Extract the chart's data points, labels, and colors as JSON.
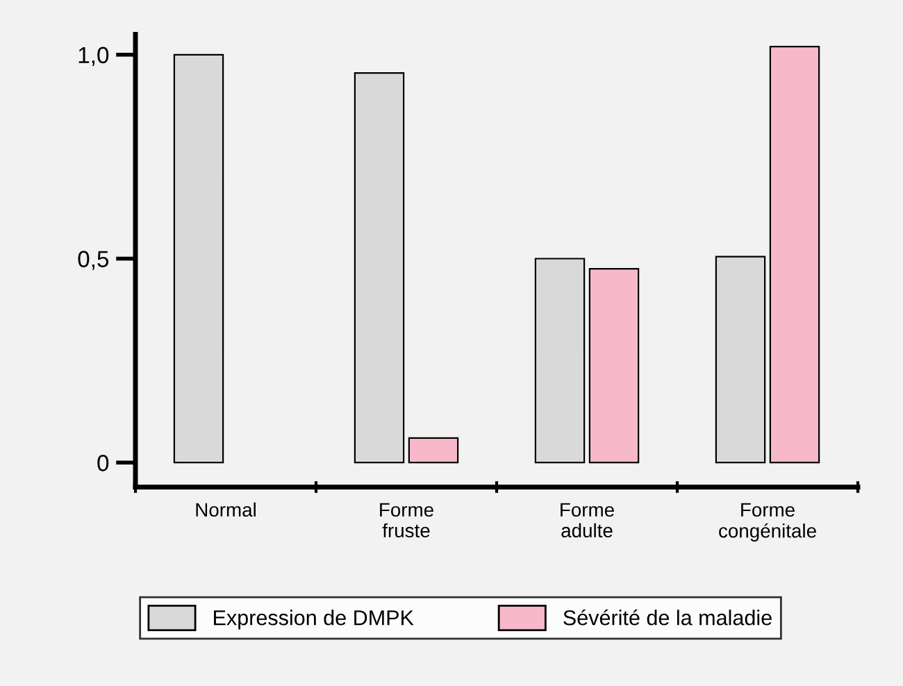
{
  "chart_data": {
    "type": "bar",
    "categories": [
      "Normal",
      "Forme\nfruste",
      "Forme\nadulte",
      "Forme\ncongénitale"
    ],
    "series": [
      {
        "name": "Expression de DMPK",
        "color": "#d9d9d9",
        "values": [
          1.0,
          0.955,
          0.5,
          0.505
        ]
      },
      {
        "name": "Sévérité de la maladie",
        "color": "#f7b8ca",
        "values": [
          null,
          0.06,
          0.475,
          1.02
        ]
      }
    ],
    "ylim": [
      -0.06,
      1.05
    ],
    "yticks": [
      {
        "value": 0,
        "label": "0"
      },
      {
        "value": 0.5,
        "label": "0,5"
      },
      {
        "value": 1.0,
        "label": "1,0"
      }
    ],
    "grid": false,
    "legend": "bottom"
  }
}
